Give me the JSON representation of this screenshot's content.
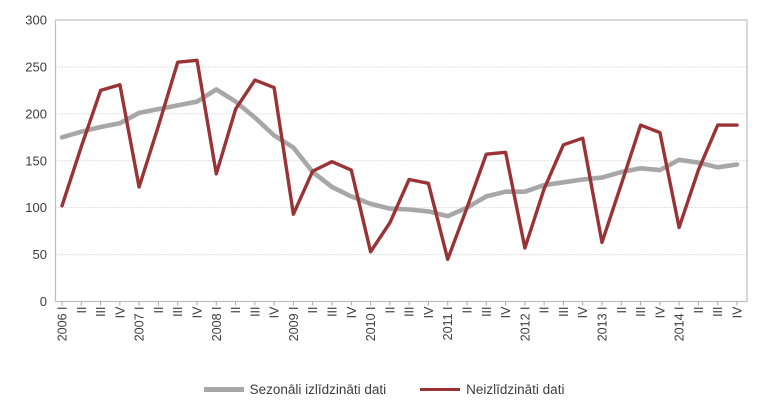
{
  "chart_data": {
    "type": "line",
    "title": "",
    "xlabel": "",
    "ylabel": "",
    "ylim": [
      0,
      300
    ],
    "y_ticks": [
      0,
      50,
      100,
      150,
      200,
      250,
      300
    ],
    "grid": "horizontal-dotted",
    "legend_position": "bottom",
    "x_labels": [
      "2006 I",
      "II",
      "III",
      "IV",
      "2007 I",
      "II",
      "III",
      "IV",
      "2008 I",
      "II",
      "III",
      "IV",
      "2009 I",
      "II",
      "III",
      "IV",
      "2010 I",
      "II",
      "III",
      "IV",
      "2011 I",
      "II",
      "III",
      "IV",
      "2012 I",
      "II",
      "III",
      "IV",
      "2013 I",
      "II",
      "III",
      "IV",
      "2014 I",
      "II",
      "III",
      "IV"
    ],
    "series": [
      {
        "name": "Sezonāli izlīdzināti dati",
        "color": "#A7A7A7",
        "width": 4.6,
        "values": [
          175,
          181,
          186,
          190,
          201,
          205,
          209,
          213,
          226,
          213,
          196,
          177,
          164,
          138,
          122,
          112,
          104,
          99,
          98,
          96,
          91,
          100,
          112,
          117,
          117,
          124,
          127,
          130,
          132,
          138,
          142,
          140,
          151,
          148,
          143,
          146
        ]
      },
      {
        "name": "Neizlīdzināti dati",
        "color": "#9A3336",
        "width": 3.4,
        "values": [
          102,
          165,
          225,
          231,
          122,
          187,
          255,
          257,
          136,
          205,
          236,
          228,
          93,
          139,
          149,
          140,
          53,
          84,
          130,
          126,
          45,
          100,
          157,
          159,
          57,
          120,
          167,
          174,
          63,
          125,
          188,
          180,
          79,
          140,
          188,
          188
        ]
      }
    ],
    "axis_color": "#BFBFBF",
    "gridline_color": "#BFBFBF",
    "tick_color": "#A6A6A6",
    "label_color": "#3d3d3d"
  }
}
